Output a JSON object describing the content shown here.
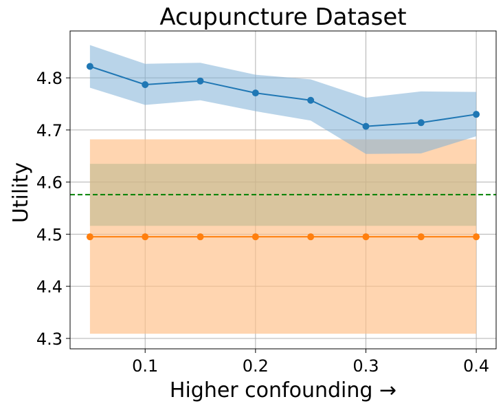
{
  "chart_data": {
    "type": "line",
    "title": "Acupuncture Dataset",
    "xlabel": "Higher confounding →",
    "ylabel": "Utility",
    "xlim": [
      0.032,
      0.418
    ],
    "ylim": [
      4.28,
      4.89
    ],
    "xticks": [
      0.1,
      0.2,
      0.3,
      0.4
    ],
    "xtick_labels": [
      "0.1",
      "0.2",
      "0.3",
      "0.4"
    ],
    "yticks": [
      4.3,
      4.4,
      4.5,
      4.6,
      4.7,
      4.8
    ],
    "ytick_labels": [
      "4.3",
      "4.4",
      "4.5",
      "4.6",
      "4.7",
      "4.8"
    ],
    "grid": true,
    "x": [
      0.05,
      0.1,
      0.15,
      0.2,
      0.25,
      0.3,
      0.35,
      0.4
    ],
    "bands": [
      {
        "color": "#ffbe86",
        "opacity": 0.65,
        "x": [
          0.05,
          0.4
        ],
        "lower": [
          4.309,
          4.309
        ],
        "upper": [
          4.682,
          4.682
        ]
      },
      {
        "color": "#aab28a",
        "opacity": 0.45,
        "x": [
          0.05,
          0.4
        ],
        "lower": [
          4.516,
          4.516
        ],
        "upper": [
          4.635,
          4.635
        ]
      },
      {
        "color": "#7fb0d7",
        "opacity": 0.55,
        "x": [
          0.05,
          0.1,
          0.15,
          0.2,
          0.25,
          0.3,
          0.35,
          0.4
        ],
        "lower": [
          4.781,
          4.748,
          4.757,
          4.736,
          4.718,
          4.654,
          4.655,
          4.688
        ],
        "upper": [
          4.863,
          4.827,
          4.829,
          4.806,
          4.797,
          4.762,
          4.774,
          4.773
        ]
      }
    ],
    "reference_line": {
      "y": 4.576,
      "color": "#008000",
      "style": "dashed"
    },
    "series": [
      {
        "color": "#1f77b4",
        "values": [
          4.822,
          4.787,
          4.794,
          4.771,
          4.757,
          4.707,
          4.714,
          4.73
        ]
      },
      {
        "color": "#ff7f0e",
        "values": [
          4.495,
          4.495,
          4.495,
          4.495,
          4.495,
          4.495,
          4.495,
          4.495
        ]
      }
    ]
  }
}
